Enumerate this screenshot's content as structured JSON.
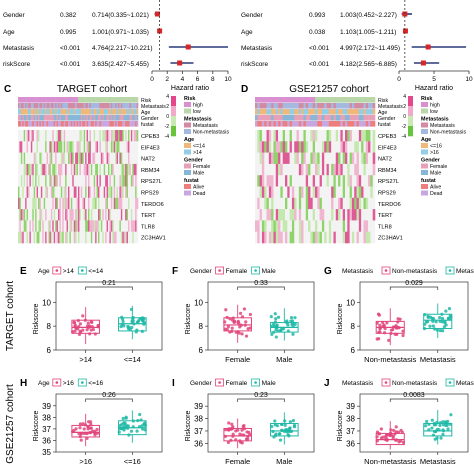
{
  "forest_left": {
    "rows": [
      {
        "name": "Gender",
        "p": "0.382",
        "hr": "0.714(0.335~1.021)",
        "est": 0.714,
        "lo": 0.335,
        "hi": 1.021
      },
      {
        "name": "Age",
        "p": "0.995",
        "hr": "1.001(0.971~1.035)",
        "est": 1.001,
        "lo": 0.971,
        "hi": 1.035
      },
      {
        "name": "Metastasis",
        "p": "<0.001",
        "hr": "4.764(2.217~10.221)",
        "est": 4.764,
        "lo": 2.217,
        "hi": 10.221
      },
      {
        "name": "riskScore",
        "p": "<0.001",
        "hr": "3.635(2.427~5.455)",
        "est": 3.635,
        "lo": 2.427,
        "hi": 5.455
      }
    ],
    "ticks": [
      "0",
      "2",
      "4",
      "6",
      "8",
      "10"
    ],
    "xlabel": "Hazard ratio"
  },
  "forest_right": {
    "rows": [
      {
        "name": "Gender",
        "p": "0.993",
        "hr": "1.003(0.452~2.227)",
        "est": 1.003,
        "lo": 0.452,
        "hi": 2.227
      },
      {
        "name": "Age",
        "p": "0.038",
        "hr": "1.103(1.005~1.211)",
        "est": 1.103,
        "lo": 1.005,
        "hi": 1.211
      },
      {
        "name": "Metastasis",
        "p": "<0.001",
        "hr": "4.997(2.172~11.495)",
        "est": 4.997,
        "lo": 2.172,
        "hi": 11.495
      },
      {
        "name": "riskScore",
        "p": "<0.001",
        "hr": "4.182(2.565~6.885)",
        "est": 4.182,
        "lo": 2.565,
        "hi": 6.885
      }
    ],
    "ticks": [
      "0",
      "5",
      "10"
    ],
    "xlabel": "Hazard ratio"
  },
  "heatmap_c": {
    "letter": "C",
    "title": "TARGET cohort",
    "annot_rows": [
      "Risk",
      "Metastasis",
      "Age",
      "Gender",
      "fustat"
    ],
    "genes": [
      "CPEB3",
      "EIF4E3",
      "NAT2",
      "RBM34",
      "RPS27L",
      "RPS29",
      "TERDO6",
      "TERT",
      "TLR8",
      "ZC3HAV1"
    ],
    "scale_ticks": [
      "4",
      "2",
      "0",
      "-2",
      "-4"
    ],
    "legend": [
      {
        "title": "Risk",
        "items": [
          {
            "label": "high",
            "color": "#d990d0"
          },
          {
            "label": "low",
            "color": "#b9d7a8"
          }
        ]
      },
      {
        "title": "Metastasis",
        "items": [
          {
            "label": "Metastasis",
            "color": "#d48aa0"
          },
          {
            "label": "Non-metastasis",
            "color": "#a5b9e0"
          }
        ]
      },
      {
        "title": "Age",
        "items": [
          {
            "label": "<=14",
            "color": "#f0b87a"
          },
          {
            "label": ">14",
            "color": "#93cde6"
          }
        ]
      },
      {
        "title": "Gender",
        "items": [
          {
            "label": "Female",
            "color": "#e7a0b8"
          },
          {
            "label": "Male",
            "color": "#86b7d8"
          }
        ]
      },
      {
        "title": "fustat",
        "items": [
          {
            "label": "Alive",
            "color": "#ee7d7d"
          },
          {
            "label": "Dead",
            "color": "#c8a6e0"
          }
        ]
      }
    ]
  },
  "heatmap_d": {
    "letter": "D",
    "title": "GSE21257 cohort",
    "annot_rows": [
      "Risk",
      "Metastasis",
      "Age",
      "Gender",
      "fustat"
    ],
    "genes": [
      "CPEB3",
      "EIF4E3",
      "NAT2",
      "RBM34",
      "RPS27L",
      "RPS29",
      "TERDO6",
      "TERT",
      "TLR8",
      "ZC3HAV1"
    ],
    "scale_ticks": [
      "4",
      "2",
      "0",
      "-2",
      "-4"
    ],
    "legend": [
      {
        "title": "Risk",
        "items": [
          {
            "label": "high",
            "color": "#d990d0"
          },
          {
            "label": "low",
            "color": "#b9d7a8"
          }
        ]
      },
      {
        "title": "Metastasis",
        "items": [
          {
            "label": "Metastasis",
            "color": "#d48aa0"
          },
          {
            "label": "Non-metastasis",
            "color": "#a5b9e0"
          }
        ]
      },
      {
        "title": "Age",
        "items": [
          {
            "label": "<=16",
            "color": "#f0b87a"
          },
          {
            "label": ">16",
            "color": "#93cde6"
          }
        ]
      },
      {
        "title": "Gender",
        "items": [
          {
            "label": "Female",
            "color": "#e7a0b8"
          },
          {
            "label": "Male",
            "color": "#86b7d8"
          }
        ]
      },
      {
        "title": "fustat",
        "items": [
          {
            "label": "Alive",
            "color": "#ee7d7d"
          },
          {
            "label": "Dead",
            "color": "#c8a6e0"
          }
        ]
      }
    ]
  },
  "row_labels": {
    "target": "TARGET cohort",
    "gse": "GSE21257 cohort"
  },
  "colors": {
    "pink": "#e0457b",
    "teal": "#1fb8a6"
  },
  "chart_data": [
    {
      "type": "box",
      "panel": "E",
      "legend_title": "Age",
      "legend": [
        ">14",
        "<=14"
      ],
      "categories": [
        ">14",
        "<=14"
      ],
      "ylabel": "Riskscore",
      "yticks": [
        6,
        8,
        10
      ],
      "ylim": [
        6,
        11.2
      ],
      "pvalue": "0.21",
      "median": [
        7.9,
        8.2
      ],
      "q1": [
        7.4,
        7.6
      ],
      "q3": [
        8.5,
        8.7
      ],
      "wlo": [
        6.5,
        6.9
      ],
      "whi": [
        9.6,
        9.7
      ]
    },
    {
      "type": "box",
      "panel": "F",
      "legend_title": "Gender",
      "legend": [
        "Female",
        "Male"
      ],
      "categories": [
        "Female",
        "Male"
      ],
      "ylabel": "Riskscore",
      "yticks": [
        6,
        8,
        10
      ],
      "ylim": [
        6,
        11.2
      ],
      "pvalue": "0.33",
      "median": [
        8.1,
        7.9
      ],
      "q1": [
        7.6,
        7.5
      ],
      "q3": [
        8.7,
        8.3
      ],
      "wlo": [
        6.6,
        6.8
      ],
      "whi": [
        9.8,
        9.5
      ]
    },
    {
      "type": "box",
      "panel": "G",
      "legend_title": "Metastasis",
      "legend": [
        "Non-metastasis",
        "Metastasis"
      ],
      "categories": [
        "Non-metastasis",
        "Metastasis"
      ],
      "ylabel": "Riskscore",
      "yticks": [
        6,
        8,
        10
      ],
      "ylim": [
        6,
        11.2
      ],
      "pvalue": "0.029",
      "median": [
        7.9,
        8.5
      ],
      "q1": [
        7.4,
        7.8
      ],
      "q3": [
        8.4,
        9.0
      ],
      "wlo": [
        6.4,
        7.0
      ],
      "whi": [
        9.5,
        9.9
      ]
    },
    {
      "type": "box",
      "panel": "H",
      "legend_title": "Age",
      "legend": [
        ">16",
        "<=16"
      ],
      "categories": [
        ">16",
        "<=16"
      ],
      "ylabel": "Riskscore",
      "yticks": [
        35,
        36,
        37,
        38,
        39
      ],
      "ylim": [
        35,
        39.5
      ],
      "pvalue": "0.26",
      "median": [
        36.7,
        37.1
      ],
      "q1": [
        36.3,
        36.5
      ],
      "q3": [
        37.3,
        37.7
      ],
      "wlo": [
        35.5,
        35.8
      ],
      "whi": [
        38.3,
        38.6
      ]
    },
    {
      "type": "box",
      "panel": "I",
      "legend_title": "Gender",
      "legend": [
        "Female",
        "Male"
      ],
      "categories": [
        "Female",
        "Male"
      ],
      "ylabel": "Riskscore",
      "yticks": [
        36,
        37,
        38,
        39
      ],
      "ylim": [
        35.3,
        39.5
      ],
      "pvalue": "0.23",
      "median": [
        36.6,
        37.0
      ],
      "q1": [
        36.2,
        36.6
      ],
      "q3": [
        37.2,
        37.6
      ],
      "wlo": [
        35.6,
        35.9
      ],
      "whi": [
        38.0,
        38.5
      ]
    },
    {
      "type": "box",
      "panel": "J",
      "legend_title": "Metastasis",
      "legend": [
        "Non-metastasis",
        "Metastasis"
      ],
      "categories": [
        "Non-metastasis",
        "Metastasis"
      ],
      "ylabel": "Riskscore",
      "yticks": [
        36,
        37,
        38,
        39
      ],
      "ylim": [
        35.3,
        39.5
      ],
      "pvalue": "0.0083",
      "median": [
        36.3,
        37.0
      ],
      "q1": [
        35.9,
        36.6
      ],
      "q3": [
        36.8,
        37.6
      ],
      "wlo": [
        35.5,
        35.9
      ],
      "whi": [
        37.8,
        38.7
      ]
    }
  ]
}
